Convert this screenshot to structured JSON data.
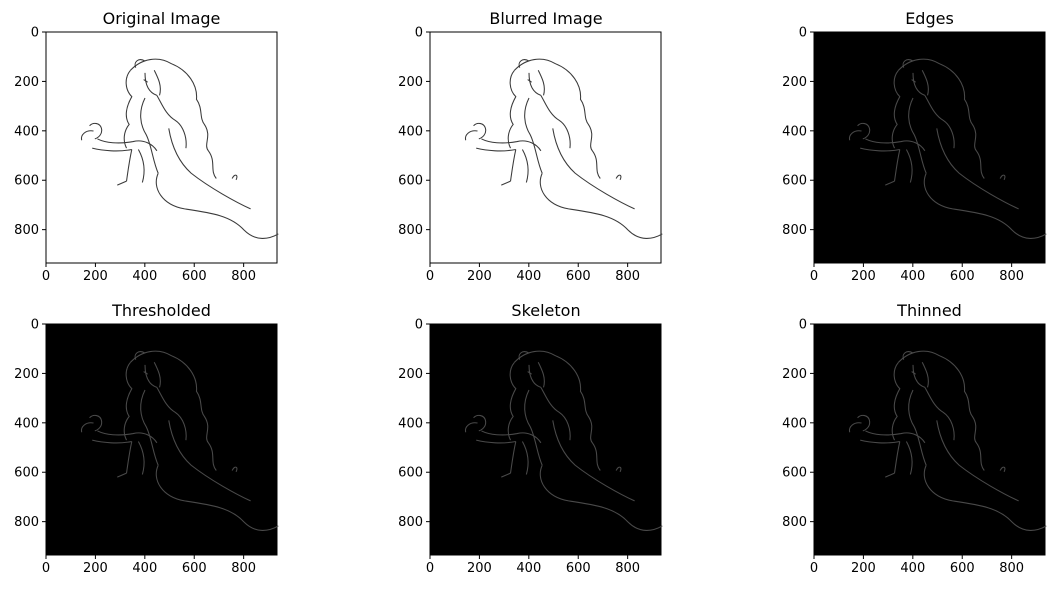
{
  "figure": {
    "background": "#ffffff",
    "line_color": "#3a3a3a",
    "dark_line_color": "#4a4a4a",
    "dark_background": "#000000"
  },
  "panels": [
    {
      "title": "Original Image",
      "style": "light",
      "image": "line-drawing-woman-with-bird"
    },
    {
      "title": "Blurred Image",
      "style": "light",
      "image": "line-drawing-woman-with-bird"
    },
    {
      "title": "Edges",
      "style": "dark",
      "image": "line-drawing-woman-with-bird"
    },
    {
      "title": "Thresholded",
      "style": "dark",
      "image": "line-drawing-woman-with-bird"
    },
    {
      "title": "Skeleton",
      "style": "dark",
      "image": "line-drawing-woman-with-bird"
    },
    {
      "title": "Thinned",
      "style": "dark",
      "image": "line-drawing-woman-with-bird"
    }
  ],
  "axes": {
    "x_ticks": [
      "0",
      "200",
      "400",
      "600",
      "800"
    ],
    "y_ticks": [
      "0",
      "200",
      "400",
      "600",
      "800"
    ],
    "x_tick_values": [
      0,
      200,
      400,
      600,
      800
    ],
    "y_tick_values": [
      0,
      200,
      400,
      600,
      800
    ],
    "xlim": [
      0,
      935
    ],
    "ylim": [
      935,
      0
    ]
  }
}
